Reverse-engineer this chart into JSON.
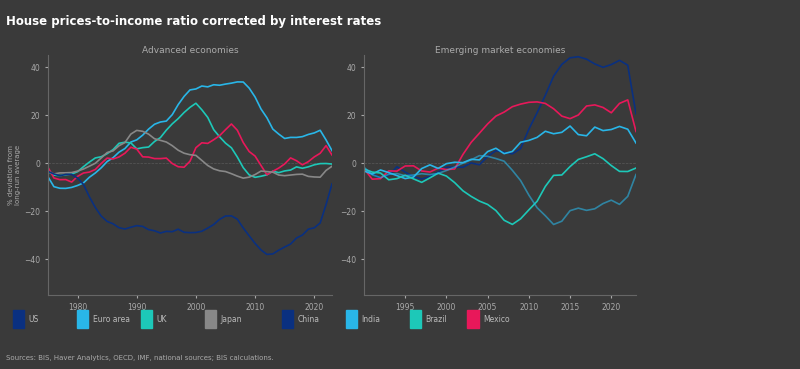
{
  "title": "House prices-to-income ratio corrected by interest rates",
  "bg_color": "#3a3a3a",
  "header_color": "#0d1b3e",
  "plot_bg": "#3a3a3a",
  "line_colors_p1": {
    "dark_blue": "#0a3080",
    "light_blue": "#29b6e8",
    "teal": "#1dc8b8",
    "pink": "#e8185a",
    "gray": "#888888"
  },
  "line_colors_p2": {
    "dark_blue": "#0a3080",
    "light_blue": "#29b6e8",
    "teal": "#1dc8b8",
    "pink": "#e8185a",
    "gray": "#888888"
  },
  "stripe_colors": [
    "#0d1b3e",
    "#1a90d0",
    "#3a3a3a",
    "#1a90d0",
    "#3a3a3a",
    "#1dc8b8",
    "#3a3a3a",
    "#e8185a",
    "#3a3a3a",
    "#29b6e8",
    "#3a3a3a",
    "#1a90d0",
    "#3a3a3a",
    "#1dc8b8",
    "#3a3a3a"
  ],
  "legend_labels_p1": [
    "US",
    "Euro area",
    "UK",
    "Japan"
  ],
  "legend_labels_p2": [
    "China",
    "India",
    "Brazil",
    "Mexico"
  ],
  "legend_colors_p1": [
    "#0a3080",
    "#29b6e8",
    "#1dc8b8",
    "#888888"
  ],
  "legend_colors_p2": [
    "#0a3080",
    "#29b6e8",
    "#1dc8b8",
    "#e8185a"
  ],
  "ylabel": "% deviation from\nlong-run average",
  "source_text": "Sources: BIS, Haver Analytics, OECD, IMF, national sources; BIS calculations.",
  "panel1_title": "Advanced economies",
  "panel2_title": "Emerging market economies"
}
